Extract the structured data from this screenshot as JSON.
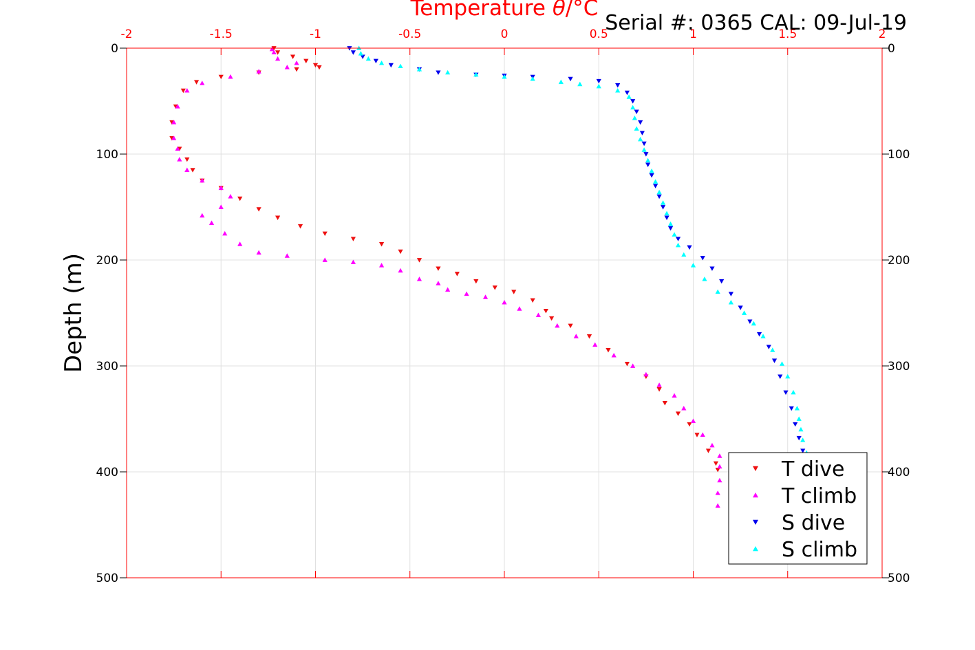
{
  "chart_data": {
    "type": "scatter",
    "title_pre": "Temperature ",
    "title_theta": "θ",
    "title_post": "/°C",
    "serial_text": "Serial #: 0365  CAL: 09-Jul-19",
    "ylabel": "Depth (m)",
    "xlim": [
      -2,
      2
    ],
    "ylim": [
      0,
      500
    ],
    "y_reversed": true,
    "grid": true,
    "x_ticks": [
      -2,
      -1.5,
      -1,
      -0.5,
      0,
      0.5,
      1,
      1.5,
      2
    ],
    "x_tick_labels": [
      "-2",
      "-1.5",
      "-1",
      "-0.5",
      "0",
      "0.5",
      "1",
      "1.5",
      "2"
    ],
    "y_ticks": [
      0,
      100,
      200,
      300,
      400,
      500
    ],
    "y_tick_labels": [
      "0",
      "100",
      "200",
      "300",
      "400",
      "500"
    ],
    "legend_position": "bottom-right",
    "colors": {
      "axis": "#ff0000",
      "grid": "#e0e0e0",
      "text": "#000000"
    },
    "series": [
      {
        "name": "T dive",
        "color": "#ee1111",
        "marker": "triangle-down",
        "points": [
          [
            -1.22,
            0
          ],
          [
            -1.2,
            4
          ],
          [
            -1.12,
            8
          ],
          [
            -1.05,
            12
          ],
          [
            -1.0,
            16
          ],
          [
            -0.98,
            18
          ],
          [
            -1.1,
            20
          ],
          [
            -1.3,
            23
          ],
          [
            -1.5,
            27
          ],
          [
            -1.63,
            32
          ],
          [
            -1.7,
            40
          ],
          [
            -1.74,
            55
          ],
          [
            -1.76,
            70
          ],
          [
            -1.76,
            85
          ],
          [
            -1.72,
            95
          ],
          [
            -1.68,
            105
          ],
          [
            -1.65,
            115
          ],
          [
            -1.6,
            125
          ],
          [
            -1.5,
            132
          ],
          [
            -1.4,
            142
          ],
          [
            -1.3,
            152
          ],
          [
            -1.2,
            160
          ],
          [
            -1.08,
            168
          ],
          [
            -0.95,
            175
          ],
          [
            -0.8,
            180
          ],
          [
            -0.65,
            185
          ],
          [
            -0.55,
            192
          ],
          [
            -0.45,
            200
          ],
          [
            -0.35,
            208
          ],
          [
            -0.25,
            213
          ],
          [
            -0.15,
            220
          ],
          [
            -0.05,
            226
          ],
          [
            0.05,
            230
          ],
          [
            0.15,
            238
          ],
          [
            0.22,
            248
          ],
          [
            0.25,
            255
          ],
          [
            0.35,
            262
          ],
          [
            0.45,
            272
          ],
          [
            0.55,
            285
          ],
          [
            0.65,
            298
          ],
          [
            0.75,
            310
          ],
          [
            0.82,
            322
          ],
          [
            0.85,
            335
          ],
          [
            0.92,
            345
          ],
          [
            0.98,
            355
          ],
          [
            1.02,
            365
          ],
          [
            1.08,
            380
          ],
          [
            1.12,
            392
          ],
          [
            1.13,
            398
          ]
        ]
      },
      {
        "name": "T climb",
        "color": "#ff00ff",
        "marker": "triangle-up",
        "points": [
          [
            1.13,
            432
          ],
          [
            1.13,
            420
          ],
          [
            1.14,
            408
          ],
          [
            1.14,
            395
          ],
          [
            1.14,
            385
          ],
          [
            1.1,
            375
          ],
          [
            1.05,
            365
          ],
          [
            1.0,
            352
          ],
          [
            0.95,
            340
          ],
          [
            0.9,
            328
          ],
          [
            0.82,
            318
          ],
          [
            0.75,
            308
          ],
          [
            0.68,
            300
          ],
          [
            0.58,
            290
          ],
          [
            0.48,
            280
          ],
          [
            0.38,
            272
          ],
          [
            0.28,
            262
          ],
          [
            0.18,
            252
          ],
          [
            0.08,
            246
          ],
          [
            0.0,
            240
          ],
          [
            -0.1,
            235
          ],
          [
            -0.2,
            232
          ],
          [
            -0.3,
            228
          ],
          [
            -0.35,
            222
          ],
          [
            -0.45,
            218
          ],
          [
            -0.55,
            210
          ],
          [
            -0.65,
            205
          ],
          [
            -0.8,
            202
          ],
          [
            -0.95,
            200
          ],
          [
            -1.15,
            196
          ],
          [
            -1.3,
            193
          ],
          [
            -1.4,
            185
          ],
          [
            -1.48,
            175
          ],
          [
            -1.55,
            165
          ],
          [
            -1.6,
            158
          ],
          [
            -1.5,
            150
          ],
          [
            -1.45,
            140
          ],
          [
            -1.5,
            132
          ],
          [
            -1.6,
            125
          ],
          [
            -1.68,
            115
          ],
          [
            -1.72,
            105
          ],
          [
            -1.73,
            95
          ],
          [
            -1.75,
            85
          ],
          [
            -1.75,
            70
          ],
          [
            -1.73,
            55
          ],
          [
            -1.68,
            40
          ],
          [
            -1.6,
            33
          ],
          [
            -1.45,
            27
          ],
          [
            -1.3,
            22
          ],
          [
            -1.15,
            18
          ],
          [
            -1.1,
            14
          ],
          [
            -1.2,
            10
          ],
          [
            -1.22,
            4
          ],
          [
            -1.23,
            1
          ]
        ]
      },
      {
        "name": "S dive",
        "color": "#0000ee",
        "marker": "triangle-down",
        "points": [
          [
            -0.82,
            0
          ],
          [
            -0.8,
            4
          ],
          [
            -0.75,
            8
          ],
          [
            -0.68,
            12
          ],
          [
            -0.6,
            16
          ],
          [
            -0.45,
            20
          ],
          [
            -0.35,
            23
          ],
          [
            -0.15,
            25
          ],
          [
            0.0,
            26
          ],
          [
            0.15,
            27
          ],
          [
            0.35,
            29
          ],
          [
            0.5,
            31
          ],
          [
            0.6,
            35
          ],
          [
            0.65,
            42
          ],
          [
            0.68,
            50
          ],
          [
            0.7,
            60
          ],
          [
            0.72,
            70
          ],
          [
            0.73,
            80
          ],
          [
            0.74,
            90
          ],
          [
            0.75,
            100
          ],
          [
            0.76,
            110
          ],
          [
            0.78,
            120
          ],
          [
            0.8,
            130
          ],
          [
            0.82,
            140
          ],
          [
            0.84,
            150
          ],
          [
            0.86,
            160
          ],
          [
            0.88,
            170
          ],
          [
            0.92,
            180
          ],
          [
            0.98,
            188
          ],
          [
            1.05,
            198
          ],
          [
            1.1,
            208
          ],
          [
            1.15,
            220
          ],
          [
            1.2,
            232
          ],
          [
            1.25,
            245
          ],
          [
            1.3,
            258
          ],
          [
            1.35,
            270
          ],
          [
            1.4,
            282
          ],
          [
            1.43,
            295
          ],
          [
            1.46,
            310
          ],
          [
            1.49,
            325
          ],
          [
            1.52,
            340
          ],
          [
            1.54,
            355
          ],
          [
            1.56,
            368
          ],
          [
            1.58,
            380
          ]
        ]
      },
      {
        "name": "S climb",
        "color": "#00ffff",
        "marker": "triangle-up",
        "points": [
          [
            1.6,
            382
          ],
          [
            1.58,
            370
          ],
          [
            1.57,
            360
          ],
          [
            1.56,
            350
          ],
          [
            1.55,
            340
          ],
          [
            1.53,
            325
          ],
          [
            1.5,
            310
          ],
          [
            1.47,
            298
          ],
          [
            1.42,
            285
          ],
          [
            1.37,
            272
          ],
          [
            1.32,
            260
          ],
          [
            1.27,
            250
          ],
          [
            1.2,
            240
          ],
          [
            1.13,
            230
          ],
          [
            1.06,
            218
          ],
          [
            1.0,
            205
          ],
          [
            0.95,
            195
          ],
          [
            0.92,
            186
          ],
          [
            0.9,
            176
          ],
          [
            0.88,
            166
          ],
          [
            0.86,
            156
          ],
          [
            0.84,
            146
          ],
          [
            0.82,
            136
          ],
          [
            0.8,
            126
          ],
          [
            0.78,
            116
          ],
          [
            0.76,
            106
          ],
          [
            0.74,
            96
          ],
          [
            0.72,
            86
          ],
          [
            0.7,
            76
          ],
          [
            0.69,
            66
          ],
          [
            0.68,
            56
          ],
          [
            0.66,
            46
          ],
          [
            0.6,
            40
          ],
          [
            0.5,
            36
          ],
          [
            0.4,
            34
          ],
          [
            0.3,
            32
          ],
          [
            0.15,
            29
          ],
          [
            0.0,
            27
          ],
          [
            -0.15,
            25
          ],
          [
            -0.3,
            23
          ],
          [
            -0.45,
            20
          ],
          [
            -0.55,
            17
          ],
          [
            -0.65,
            14
          ],
          [
            -0.72,
            10
          ],
          [
            -0.76,
            5
          ],
          [
            -0.77,
            0
          ]
        ]
      }
    ]
  }
}
